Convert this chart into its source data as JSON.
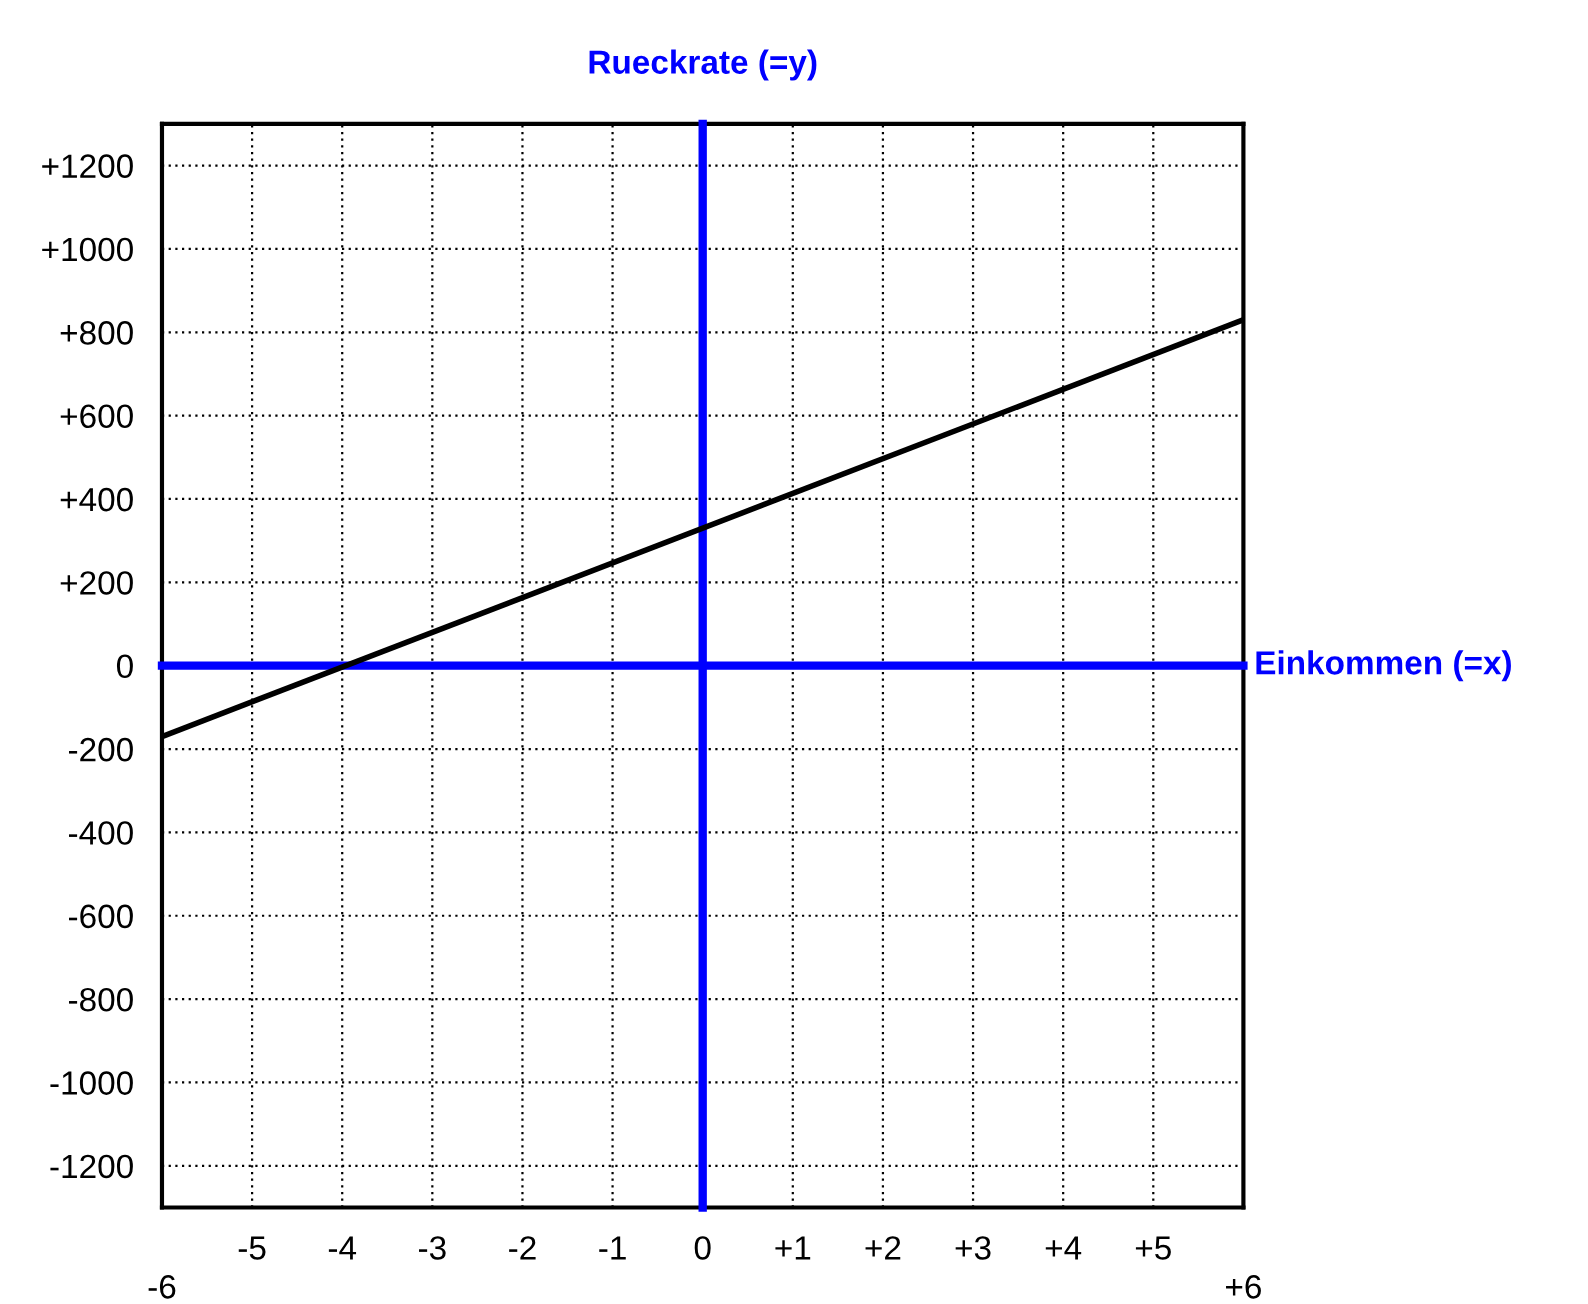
{
  "chart_data": {
    "type": "line",
    "xlabel": "Einkommen (=x)",
    "ylabel": "Rueckrate (=y)",
    "x": [
      -6,
      6
    ],
    "series": [
      {
        "color": "#000000",
        "values": [
          -170,
          830
        ]
      }
    ],
    "xlim": [
      -6,
      6
    ],
    "ylim": [
      -1300,
      1300
    ],
    "xticks": [
      {
        "value": -6,
        "label": null
      },
      {
        "value": -5,
        "label": "-5"
      },
      {
        "value": -4,
        "label": "-4"
      },
      {
        "value": -3,
        "label": "-3"
      },
      {
        "value": -2,
        "label": "-2"
      },
      {
        "value": -1,
        "label": "-1"
      },
      0,
      {
        "value": 1,
        "label": "+1"
      },
      {
        "value": 2,
        "label": "+2"
      },
      {
        "value": 3,
        "label": "+3"
      },
      {
        "value": 4,
        "label": "+4"
      },
      {
        "value": 5,
        "label": "+5"
      },
      {
        "value": 6,
        "label": null
      }
    ],
    "annotations": [
      "-6",
      "+6"
    ],
    "yticks": [
      {
        "value": -1200,
        "label": "-1200"
      },
      {
        "value": -1000,
        "label": "-1000"
      },
      {
        "value": -800,
        "label": "-800"
      },
      {
        "value": -600,
        "label": "-600"
      },
      {
        "value": -400,
        "label": "-400"
      },
      {
        "value": -200,
        "label": "-200"
      },
      0,
      {
        "value": 200,
        "label": "+200"
      },
      {
        "value": 400,
        "label": "+400"
      },
      {
        "value": 600,
        "label": "+600"
      },
      {
        "value": 800,
        "label": "+800"
      },
      {
        "value": 1000,
        "label": "+1000"
      },
      {
        "value": 1200,
        "label": "+1200"
      }
    ],
    "grid": true,
    "line_style": "solid"
  }
}
